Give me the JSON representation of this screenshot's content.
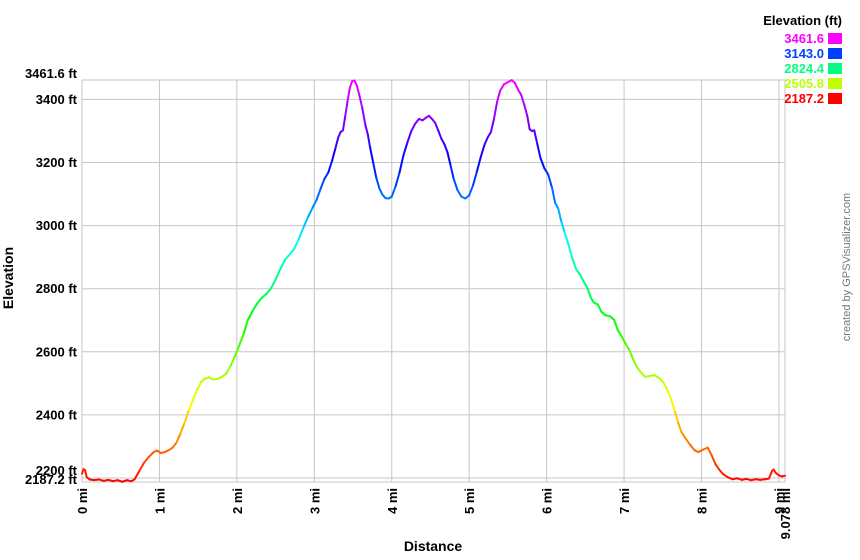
{
  "credit": "created by GPSVisualizer.com",
  "legend": {
    "title": "Elevation (ft)",
    "position": "top-right",
    "entries": [
      {
        "label": "3461.6",
        "color": "#ff00ff"
      },
      {
        "label": "3143.0",
        "color": "#0040ff"
      },
      {
        "label": "2824.4",
        "color": "#00ff80"
      },
      {
        "label": "2505.8",
        "color": "#bfff00"
      },
      {
        "label": "2187.2",
        "color": "#ff0000"
      }
    ]
  },
  "chart_data": {
    "type": "line",
    "title": "",
    "xlabel": "Distance",
    "ylabel": "Elevation",
    "x_unit": "mi",
    "y_unit": "ft",
    "xlim": [
      0,
      9.078
    ],
    "ylim": [
      2187.2,
      3461.6
    ],
    "grid": true,
    "gridline_color": "#c6c6c6",
    "line_colorized_by_elevation": true,
    "color_scale": {
      "hue_start": 0,
      "hue_end": 300,
      "saturation": "100%",
      "lightness": "50%"
    },
    "x_ticks": [
      {
        "value": 0,
        "label": "0 mi"
      },
      {
        "value": 1,
        "label": "1 mi"
      },
      {
        "value": 2,
        "label": "2 mi"
      },
      {
        "value": 3,
        "label": "3 mi"
      },
      {
        "value": 4,
        "label": "4 mi"
      },
      {
        "value": 5,
        "label": "5 mi"
      },
      {
        "value": 6,
        "label": "6 mi"
      },
      {
        "value": 7,
        "label": "7 mi"
      },
      {
        "value": 8,
        "label": "8 mi"
      },
      {
        "value": 9,
        "label": "9 mi"
      },
      {
        "value": 9.078,
        "label": "9.078 mi"
      }
    ],
    "y_ticks": [
      {
        "value": 3461.6,
        "label": "3461.6 ft"
      },
      {
        "value": 3400,
        "label": "3400 ft"
      },
      {
        "value": 3200,
        "label": "3200 ft"
      },
      {
        "value": 3000,
        "label": "3000 ft"
      },
      {
        "value": 2800,
        "label": "2800 ft"
      },
      {
        "value": 2600,
        "label": "2600 ft"
      },
      {
        "value": 2400,
        "label": "2400 ft"
      },
      {
        "value": 2200,
        "label": "2200 ft"
      },
      {
        "value": 2187.2,
        "label": "2187.2 ft"
      }
    ],
    "points": [
      [
        0,
        2213
      ],
      [
        0.02,
        2228
      ],
      [
        0.04,
        2225
      ],
      [
        0.06,
        2203
      ],
      [
        0.1,
        2195
      ],
      [
        0.16,
        2193
      ],
      [
        0.22,
        2195
      ],
      [
        0.28,
        2191
      ],
      [
        0.34,
        2194
      ],
      [
        0.4,
        2190
      ],
      [
        0.46,
        2193
      ],
      [
        0.52,
        2188
      ],
      [
        0.58,
        2193
      ],
      [
        0.64,
        2190
      ],
      [
        0.68,
        2196
      ],
      [
        0.74,
        2222
      ],
      [
        0.8,
        2248
      ],
      [
        0.86,
        2266
      ],
      [
        0.92,
        2281
      ],
      [
        0.97,
        2287
      ],
      [
        1.02,
        2279
      ],
      [
        1.07,
        2282
      ],
      [
        1.12,
        2288
      ],
      [
        1.17,
        2296
      ],
      [
        1.22,
        2312
      ],
      [
        1.27,
        2340
      ],
      [
        1.32,
        2372
      ],
      [
        1.38,
        2415
      ],
      [
        1.44,
        2452
      ],
      [
        1.49,
        2482
      ],
      [
        1.54,
        2504
      ],
      [
        1.58,
        2514
      ],
      [
        1.64,
        2519
      ],
      [
        1.69,
        2512
      ],
      [
        1.75,
        2514
      ],
      [
        1.81,
        2521
      ],
      [
        1.86,
        2530
      ],
      [
        1.92,
        2556
      ],
      [
        1.97,
        2583
      ],
      [
        2.03,
        2620
      ],
      [
        2.09,
        2658
      ],
      [
        2.14,
        2700
      ],
      [
        2.2,
        2728
      ],
      [
        2.26,
        2752
      ],
      [
        2.32,
        2771
      ],
      [
        2.38,
        2783
      ],
      [
        2.44,
        2801
      ],
      [
        2.5,
        2829
      ],
      [
        2.56,
        2862
      ],
      [
        2.62,
        2891
      ],
      [
        2.68,
        2908
      ],
      [
        2.74,
        2926
      ],
      [
        2.8,
        2958
      ],
      [
        2.86,
        2994
      ],
      [
        2.92,
        3028
      ],
      [
        2.98,
        3058
      ],
      [
        3.03,
        3082
      ],
      [
        3.08,
        3116
      ],
      [
        3.13,
        3148
      ],
      [
        3.18,
        3168
      ],
      [
        3.23,
        3206
      ],
      [
        3.27,
        3243
      ],
      [
        3.31,
        3280
      ],
      [
        3.34,
        3297
      ],
      [
        3.37,
        3302
      ],
      [
        3.4,
        3348
      ],
      [
        3.43,
        3396
      ],
      [
        3.46,
        3438
      ],
      [
        3.49,
        3458
      ],
      [
        3.52,
        3460
      ],
      [
        3.55,
        3443
      ],
      [
        3.58,
        3415
      ],
      [
        3.62,
        3372
      ],
      [
        3.66,
        3318
      ],
      [
        3.69,
        3290
      ],
      [
        3.72,
        3248
      ],
      [
        3.76,
        3200
      ],
      [
        3.8,
        3152
      ],
      [
        3.84,
        3118
      ],
      [
        3.88,
        3098
      ],
      [
        3.92,
        3087
      ],
      [
        3.96,
        3086
      ],
      [
        4,
        3092
      ],
      [
        4.05,
        3125
      ],
      [
        4.1,
        3168
      ],
      [
        4.15,
        3222
      ],
      [
        4.2,
        3262
      ],
      [
        4.25,
        3298
      ],
      [
        4.3,
        3322
      ],
      [
        4.35,
        3338
      ],
      [
        4.4,
        3334
      ],
      [
        4.44,
        3342
      ],
      [
        4.48,
        3348
      ],
      [
        4.52,
        3338
      ],
      [
        4.56,
        3326
      ],
      [
        4.6,
        3302
      ],
      [
        4.64,
        3276
      ],
      [
        4.68,
        3258
      ],
      [
        4.72,
        3232
      ],
      [
        4.76,
        3190
      ],
      [
        4.8,
        3148
      ],
      [
        4.85,
        3112
      ],
      [
        4.9,
        3092
      ],
      [
        4.95,
        3086
      ],
      [
        5,
        3096
      ],
      [
        5.05,
        3128
      ],
      [
        5.1,
        3172
      ],
      [
        5.15,
        3218
      ],
      [
        5.2,
        3258
      ],
      [
        5.24,
        3280
      ],
      [
        5.28,
        3296
      ],
      [
        5.32,
        3338
      ],
      [
        5.36,
        3392
      ],
      [
        5.4,
        3428
      ],
      [
        5.45,
        3448
      ],
      [
        5.5,
        3455
      ],
      [
        5.55,
        3461
      ],
      [
        5.59,
        3452
      ],
      [
        5.63,
        3432
      ],
      [
        5.67,
        3415
      ],
      [
        5.71,
        3384
      ],
      [
        5.75,
        3348
      ],
      [
        5.78,
        3306
      ],
      [
        5.81,
        3300
      ],
      [
        5.84,
        3302
      ],
      [
        5.88,
        3258
      ],
      [
        5.92,
        3215
      ],
      [
        5.97,
        3182
      ],
      [
        6.02,
        3162
      ],
      [
        6.07,
        3120
      ],
      [
        6.11,
        3072
      ],
      [
        6.15,
        3054
      ],
      [
        6.19,
        3012
      ],
      [
        6.23,
        2980
      ],
      [
        6.28,
        2942
      ],
      [
        6.33,
        2898
      ],
      [
        6.38,
        2862
      ],
      [
        6.43,
        2845
      ],
      [
        6.48,
        2822
      ],
      [
        6.53,
        2800
      ],
      [
        6.57,
        2772
      ],
      [
        6.61,
        2756
      ],
      [
        6.66,
        2750
      ],
      [
        6.71,
        2726
      ],
      [
        6.76,
        2716
      ],
      [
        6.82,
        2712
      ],
      [
        6.87,
        2702
      ],
      [
        6.92,
        2668
      ],
      [
        6.97,
        2648
      ],
      [
        7.02,
        2625
      ],
      [
        7.07,
        2604
      ],
      [
        7.12,
        2574
      ],
      [
        7.17,
        2550
      ],
      [
        7.22,
        2534
      ],
      [
        7.27,
        2521
      ],
      [
        7.33,
        2523
      ],
      [
        7.39,
        2526
      ],
      [
        7.45,
        2517
      ],
      [
        7.51,
        2502
      ],
      [
        7.56,
        2478
      ],
      [
        7.61,
        2448
      ],
      [
        7.66,
        2408
      ],
      [
        7.7,
        2374
      ],
      [
        7.74,
        2346
      ],
      [
        7.79,
        2327
      ],
      [
        7.85,
        2306
      ],
      [
        7.91,
        2288
      ],
      [
        7.96,
        2282
      ],
      [
        8.02,
        2290
      ],
      [
        8.08,
        2296
      ],
      [
        8.13,
        2272
      ],
      [
        8.18,
        2244
      ],
      [
        8.23,
        2226
      ],
      [
        8.28,
        2212
      ],
      [
        8.34,
        2202
      ],
      [
        8.4,
        2196
      ],
      [
        8.46,
        2199
      ],
      [
        8.52,
        2194
      ],
      [
        8.58,
        2197
      ],
      [
        8.64,
        2193
      ],
      [
        8.7,
        2196
      ],
      [
        8.76,
        2194
      ],
      [
        8.82,
        2196
      ],
      [
        8.87,
        2198
      ],
      [
        8.91,
        2222
      ],
      [
        8.93,
        2227
      ],
      [
        8.96,
        2216
      ],
      [
        9,
        2208
      ],
      [
        9.04,
        2205
      ],
      [
        9.078,
        2207
      ]
    ]
  }
}
